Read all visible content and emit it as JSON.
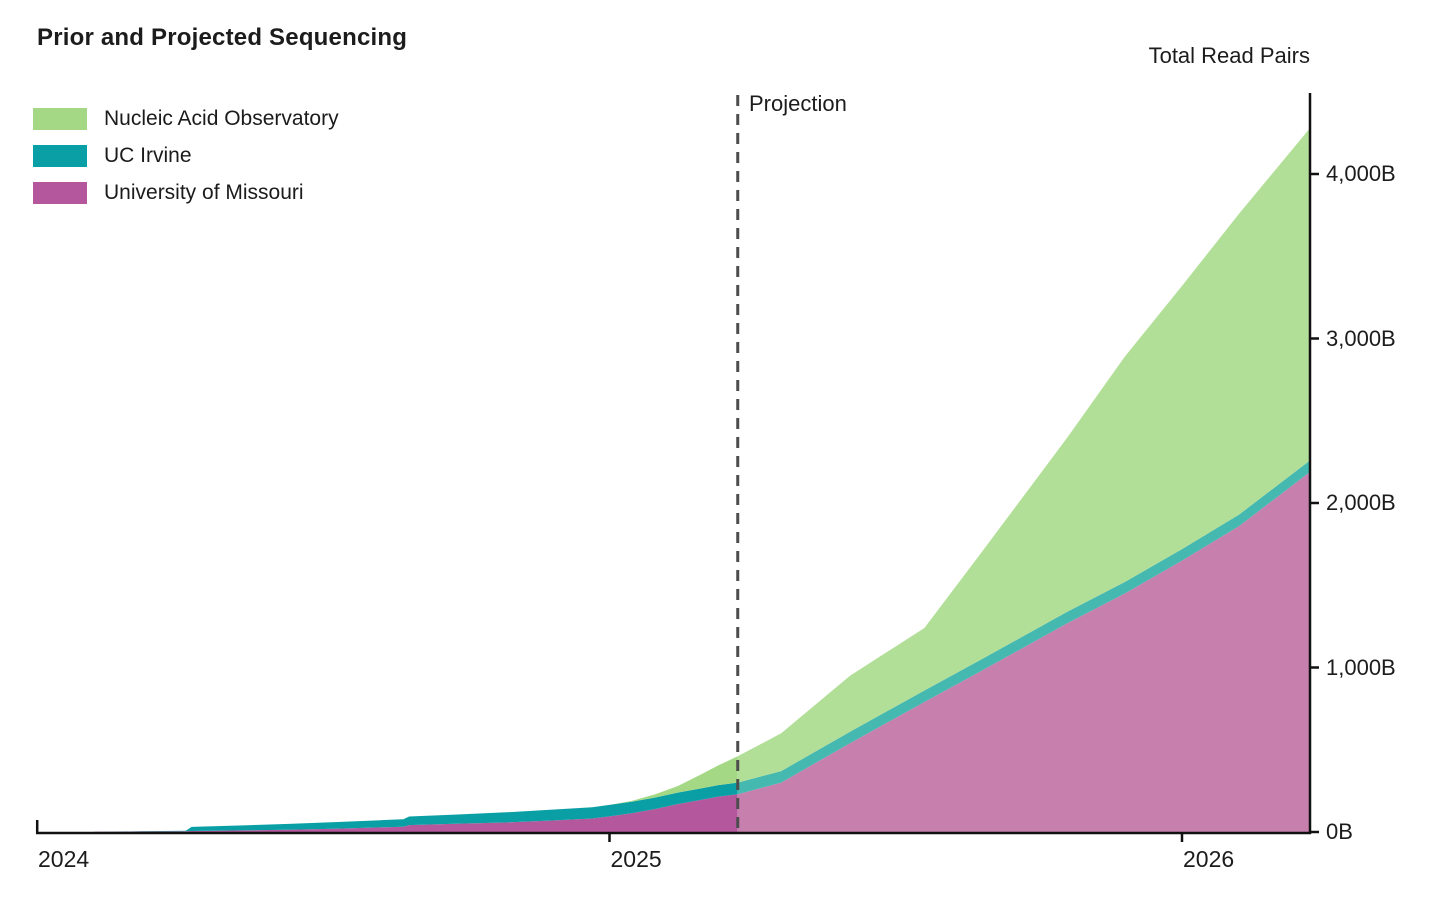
{
  "title": "Prior and Projected Sequencing",
  "y_axis_title": "Total Read Pairs",
  "projection_label": "Projection",
  "background_color": "#ffffff",
  "text_color": "#1c1c1c",
  "chart_data": {
    "type": "area",
    "stacked": true,
    "title": "Prior and Projected Sequencing",
    "ylabel": "Total Read Pairs",
    "unit": "billions of read pairs (B)",
    "grid": false,
    "legend_position": "top-left",
    "axis_color": "#111111",
    "projection_line_color": "#4d4d4d",
    "projection_start_x": 2025.224,
    "x_range": [
      2024.0,
      2026.224
    ],
    "y_range": [
      0,
      4490
    ],
    "x_tick_values": [
      2024,
      2025,
      2026
    ],
    "x_tick_labels": [
      "2024",
      "2025",
      "2026"
    ],
    "y_tick_values": [
      0,
      1000,
      2000,
      3000,
      4000
    ],
    "y_tick_labels": [
      "0B",
      "1,000B",
      "2,000B",
      "3,000B",
      "4,000B"
    ],
    "x": [
      2024.1,
      2024.18,
      2024.26,
      2024.27,
      2024.36,
      2024.44,
      2024.52,
      2024.6,
      2024.64,
      2024.65,
      2024.73,
      2024.82,
      2024.9,
      2024.97,
      2025.0,
      2025.04,
      2025.08,
      2025.12,
      2025.16,
      2025.19,
      2025.224,
      2025.3,
      2025.42,
      2025.55,
      2025.65,
      2025.8,
      2025.9,
      2026.0,
      2026.1,
      2026.224
    ],
    "series": [
      {
        "name": "University of Missouri",
        "stack_order": "bottom",
        "color": "#b4579c",
        "projected_color": "#c77fae",
        "values": [
          1,
          3,
          5,
          6,
          10,
          14,
          20,
          28,
          32,
          42,
          50,
          58,
          70,
          82,
          95,
          115,
          140,
          170,
          195,
          215,
          230,
          300,
          540,
          790,
          980,
          1270,
          1450,
          1650,
          1860,
          2190
        ]
      },
      {
        "name": "UC Irvine",
        "stack_order": "middle",
        "color": "#0a9fa4",
        "projected_color": "#45b8b0",
        "values": [
          0,
          1,
          2,
          25,
          30,
          35,
          40,
          44,
          46,
          52,
          56,
          62,
          66,
          68,
          70,
          70,
          70,
          70,
          70,
          70,
          70,
          70,
          70,
          70,
          70,
          70,
          70,
          70,
          70,
          70
        ]
      },
      {
        "name": "Nucleic Acid Observatory",
        "stack_order": "top",
        "color": "#a5d885",
        "projected_color": "#b2df97",
        "values": [
          0,
          0,
          0,
          0,
          0,
          0,
          0,
          0,
          0,
          0,
          0,
          0,
          0,
          0,
          0,
          5,
          20,
          40,
          85,
          120,
          160,
          230,
          340,
          380,
          650,
          1060,
          1370,
          1600,
          1830,
          2020
        ]
      }
    ],
    "totals_at_projection_start": 460,
    "totals_at_end": 4280,
    "legend": [
      {
        "label": "Nucleic Acid Observatory",
        "color": "#a5d885"
      },
      {
        "label": "UC Irvine",
        "color": "#0a9fa4"
      },
      {
        "label": "University of Missouri",
        "color": "#b4579c"
      }
    ]
  }
}
